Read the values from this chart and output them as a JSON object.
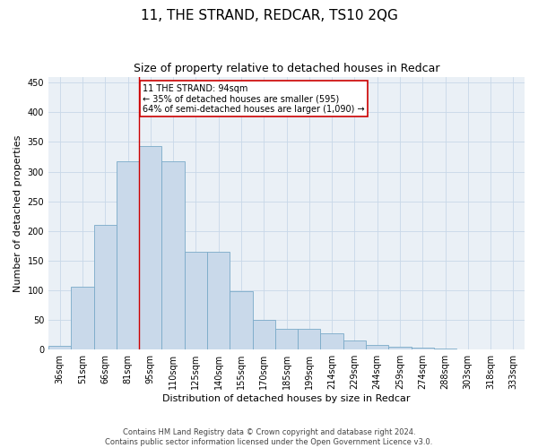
{
  "title": "11, THE STRAND, REDCAR, TS10 2QG",
  "subtitle": "Size of property relative to detached houses in Redcar",
  "xlabel": "Distribution of detached houses by size in Redcar",
  "ylabel": "Number of detached properties",
  "footer_line1": "Contains HM Land Registry data © Crown copyright and database right 2024.",
  "footer_line2": "Contains public sector information licensed under the Open Government Licence v3.0.",
  "categories": [
    "36sqm",
    "51sqm",
    "66sqm",
    "81sqm",
    "95sqm",
    "110sqm",
    "125sqm",
    "140sqm",
    "155sqm",
    "170sqm",
    "185sqm",
    "199sqm",
    "214sqm",
    "229sqm",
    "244sqm",
    "259sqm",
    "274sqm",
    "288sqm",
    "303sqm",
    "318sqm",
    "333sqm"
  ],
  "values": [
    7,
    106,
    210,
    318,
    343,
    318,
    165,
    165,
    98,
    50,
    35,
    35,
    28,
    15,
    8,
    5,
    4,
    2,
    1,
    1,
    1
  ],
  "bar_color": "#c9d9ea",
  "bar_edge_color": "#7aaac8",
  "vline_color": "#cc0000",
  "annotation_text": "11 THE STRAND: 94sqm\n← 35% of detached houses are smaller (595)\n64% of semi-detached houses are larger (1,090) →",
  "annotation_box_color": "#ffffff",
  "annotation_box_edge_color": "#cc0000",
  "ylim": [
    0,
    460
  ],
  "yticks": [
    0,
    50,
    100,
    150,
    200,
    250,
    300,
    350,
    400,
    450
  ],
  "grid_color": "#c8d8e8",
  "background_color": "#eaf0f6",
  "title_fontsize": 11,
  "subtitle_fontsize": 9,
  "tick_fontsize": 7,
  "ylabel_fontsize": 8,
  "xlabel_fontsize": 8,
  "footer_fontsize": 6,
  "annotation_fontsize": 7
}
